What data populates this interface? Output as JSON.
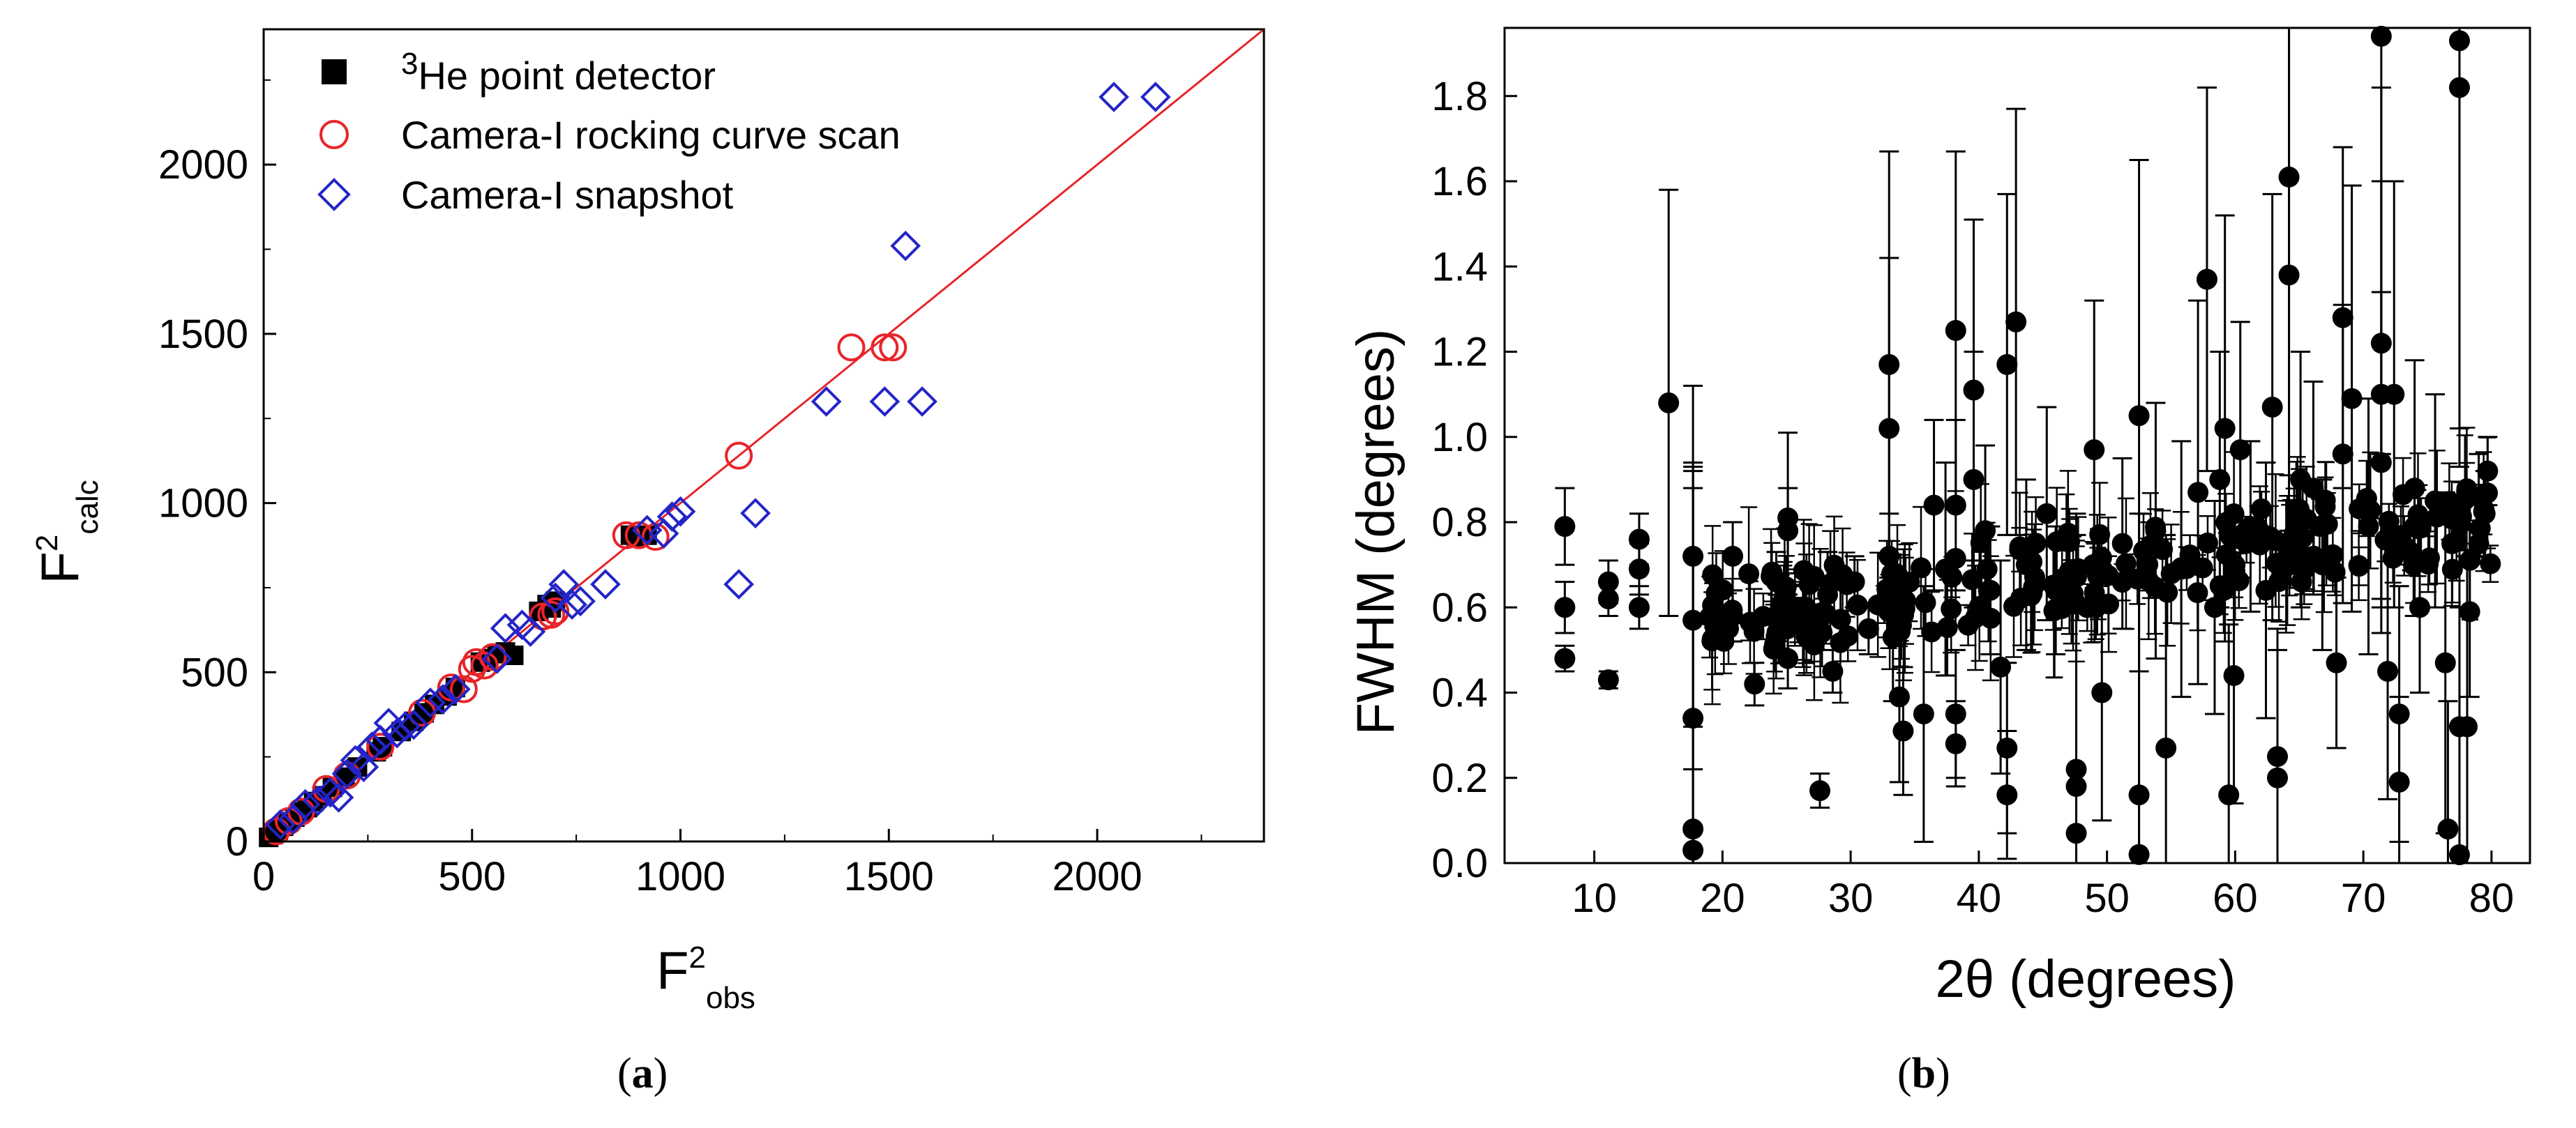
{
  "chart_data": [
    {
      "type": "scatter",
      "panel_label": "a",
      "xlabel": "F",
      "xlabel_sup": "2",
      "xlabel_sub": "obs",
      "ylabel": "F",
      "ylabel_sup": "2",
      "ylabel_sub": "calc",
      "xlim": [
        0,
        2400
      ],
      "ylim": [
        0,
        2400
      ],
      "xticks": [
        0,
        500,
        1000,
        1500,
        2000
      ],
      "yticks": [
        0,
        500,
        1000,
        1500,
        2000
      ],
      "legend_position": "top-left",
      "fit_line": {
        "x": [
          0,
          2400
        ],
        "y": [
          0,
          2400
        ],
        "color": "#e8242a"
      },
      "series": [
        {
          "name": "He point detector",
          "name_sup": "3",
          "marker": "square",
          "color": "#000000",
          "points": [
            [
              12,
              12
            ],
            [
              22,
              20
            ],
            [
              35,
              33
            ],
            [
              48,
              45
            ],
            [
              60,
              58
            ],
            [
              75,
              72
            ],
            [
              90,
              88
            ],
            [
              105,
              100
            ],
            [
              120,
              118
            ],
            [
              140,
              135
            ],
            [
              165,
              160
            ],
            [
              195,
              190
            ],
            [
              225,
              220
            ],
            [
              270,
              265
            ],
            [
              285,
              280
            ],
            [
              330,
              325
            ],
            [
              360,
              355
            ],
            [
              385,
              380
            ],
            [
              410,
              405
            ],
            [
              440,
              430
            ],
            [
              460,
              455
            ],
            [
              520,
              530
            ],
            [
              540,
              540
            ],
            [
              560,
              555
            ],
            [
              580,
              560
            ],
            [
              600,
              550
            ],
            [
              660,
              680
            ],
            [
              680,
              700
            ],
            [
              700,
              710
            ],
            [
              690,
              690
            ],
            [
              880,
              905
            ],
            [
              900,
              900
            ],
            [
              920,
              905
            ]
          ]
        },
        {
          "name": "Camera-I rocking curve scan",
          "marker": "circle",
          "color": "#e8242a",
          "points": [
            [
              30,
              30
            ],
            [
              60,
              60
            ],
            [
              90,
              88
            ],
            [
              150,
              155
            ],
            [
              200,
              195
            ],
            [
              280,
              280
            ],
            [
              380,
              380
            ],
            [
              450,
              455
            ],
            [
              480,
              450
            ],
            [
              500,
              510
            ],
            [
              510,
              530
            ],
            [
              530,
              520
            ],
            [
              550,
              545
            ],
            [
              670,
              665
            ],
            [
              690,
              670
            ],
            [
              700,
              680
            ],
            [
              870,
              905
            ],
            [
              900,
              905
            ],
            [
              940,
              900
            ],
            [
              1140,
              1140
            ],
            [
              1410,
              1460
            ],
            [
              1490,
              1460
            ],
            [
              1510,
              1460
            ]
          ]
        },
        {
          "name": "Camera-I snapshot",
          "marker": "diamond",
          "color": "#2424c8",
          "points": [
            [
              40,
              50
            ],
            [
              70,
              65
            ],
            [
              100,
              110
            ],
            [
              130,
              120
            ],
            [
              160,
              145
            ],
            [
              180,
              130
            ],
            [
              200,
              200
            ],
            [
              220,
              240
            ],
            [
              240,
              220
            ],
            [
              260,
              280
            ],
            [
              280,
              300
            ],
            [
              300,
              350
            ],
            [
              320,
              320
            ],
            [
              340,
              340
            ],
            [
              360,
              345
            ],
            [
              400,
              410
            ],
            [
              430,
              420
            ],
            [
              460,
              450
            ],
            [
              560,
              540
            ],
            [
              580,
              630
            ],
            [
              620,
              640
            ],
            [
              640,
              620
            ],
            [
              700,
              720
            ],
            [
              720,
              760
            ],
            [
              740,
              700
            ],
            [
              760,
              710
            ],
            [
              820,
              760
            ],
            [
              920,
              920
            ],
            [
              960,
              910
            ],
            [
              980,
              960
            ],
            [
              1000,
              975
            ],
            [
              1140,
              760
            ],
            [
              1180,
              970
            ],
            [
              1350,
              1300
            ],
            [
              1490,
              1300
            ],
            [
              1540,
              1760
            ],
            [
              1580,
              1300
            ],
            [
              2040,
              2200
            ],
            [
              2140,
              2200
            ]
          ]
        }
      ]
    },
    {
      "type": "scatter",
      "panel_label": "b",
      "xlabel": "2θ (degrees)",
      "ylabel": "FWHM (degrees)",
      "xlim": [
        3,
        83
      ],
      "ylim": [
        0,
        1.96
      ],
      "xticks": [
        10,
        20,
        30,
        40,
        50,
        60,
        70,
        80
      ],
      "yticks": [
        "0.0",
        "0.2",
        "0.4",
        "0.6",
        "0.8",
        "1.0",
        "1.2",
        "1.4",
        "1.6",
        "1.8"
      ],
      "legend_position": "none",
      "series": [
        {
          "name": "FWHM",
          "marker": "filled-circle",
          "color": "#000000",
          "points": [
            [
              7.7,
              0.79,
              0.09
            ],
            [
              7.7,
              0.6,
              0.06
            ],
            [
              7.7,
              0.48,
              0.03
            ],
            [
              11.1,
              0.66,
              0.05
            ],
            [
              11.1,
              0.62,
              0.04
            ],
            [
              11.1,
              0.43,
              0.02
            ],
            [
              13.5,
              0.76,
              0.06
            ],
            [
              13.5,
              0.69,
              0.06
            ],
            [
              13.5,
              0.6,
              0.05
            ],
            [
              15.8,
              1.08,
              0.5
            ],
            [
              17.7,
              0.72,
              0.4
            ],
            [
              17.7,
              0.57,
              0.35
            ],
            [
              17.7,
              0.34,
              0.6
            ],
            [
              17.7,
              0.08,
              0.8
            ],
            [
              17.7,
              0.03,
              0.9
            ],
            [
              19.5,
              0.58,
              0.05
            ],
            [
              20.8,
              0.72,
              0.08
            ],
            [
              20.8,
              0.58,
              0.06
            ],
            [
              22.5,
              0.42,
              0.05
            ],
            [
              24.2,
              0.66,
              0.07
            ],
            [
              25.1,
              0.81,
              0.2
            ],
            [
              25.1,
              0.78,
              0.1
            ],
            [
              25.1,
              0.55,
              0.08
            ],
            [
              25.1,
              0.48,
              0.07
            ],
            [
              26.5,
              0.6,
              0.05
            ],
            [
              27.6,
              0.17,
              0.04
            ],
            [
              28.2,
              0.63,
              0.1
            ],
            [
              28.6,
              0.45,
              0.05
            ],
            [
              30.3,
              0.66,
              0.06
            ],
            [
              31.4,
              0.55,
              0.06
            ],
            [
              33.0,
              1.17,
              0.5
            ],
            [
              33.0,
              1.02,
              0.4
            ],
            [
              33.0,
              0.72,
              0.1
            ],
            [
              33.3,
              0.53,
              0.15
            ],
            [
              33.8,
              0.39,
              0.2
            ],
            [
              34.1,
              0.31,
              0.15
            ],
            [
              35.7,
              0.35,
              0.3
            ],
            [
              36.5,
              0.84,
              0.2
            ],
            [
              37.4,
              0.69,
              0.25
            ],
            [
              38.2,
              1.25,
              0.42
            ],
            [
              38.2,
              0.84,
              0.2
            ],
            [
              38.2,
              0.35,
              0.15
            ],
            [
              38.2,
              0.28,
              0.1
            ],
            [
              39.6,
              1.11,
              0.4
            ],
            [
              39.6,
              0.9,
              0.3
            ],
            [
              40.5,
              0.78,
              0.2
            ],
            [
              40.9,
              0.64,
              0.15
            ],
            [
              41.7,
              0.46,
              0.25
            ],
            [
              42.2,
              1.17,
              0.4
            ],
            [
              42.2,
              0.27,
              0.2
            ],
            [
              42.2,
              0.16,
              0.15
            ],
            [
              42.9,
              1.27,
              0.5
            ],
            [
              43.7,
              0.7,
              0.2
            ],
            [
              45.3,
              0.82,
              0.25
            ],
            [
              46.0,
              0.64,
              0.15
            ],
            [
              47.6,
              0.22,
              0.6
            ],
            [
              47.6,
              0.18,
              0.5
            ],
            [
              47.6,
              0.07,
              0.7
            ],
            [
              49.0,
              0.97,
              0.35
            ],
            [
              49.6,
              0.4,
              0.3
            ],
            [
              51.2,
              0.75,
              0.2
            ],
            [
              52.5,
              1.05,
              0.6
            ],
            [
              52.5,
              0.16,
              0.5
            ],
            [
              52.5,
              0.02,
              0.8
            ],
            [
              53.8,
              0.78,
              0.3
            ],
            [
              54.6,
              0.27,
              0.5
            ],
            [
              55.8,
              0.69,
              0.3
            ],
            [
              57.1,
              0.87,
              0.45
            ],
            [
              57.8,
              1.37,
              0.45
            ],
            [
              58.4,
              0.6,
              0.25
            ],
            [
              58.8,
              0.9,
              0.3
            ],
            [
              59.2,
              1.02,
              0.5
            ],
            [
              59.5,
              0.16,
              0.4
            ],
            [
              59.9,
              0.44,
              0.3
            ],
            [
              60.4,
              0.97,
              0.3
            ],
            [
              61.2,
              0.79,
              0.2
            ],
            [
              62.4,
              0.64,
              0.3
            ],
            [
              62.9,
              1.07,
              0.5
            ],
            [
              63.3,
              0.25,
              0.3
            ],
            [
              63.3,
              0.2,
              0.3
            ],
            [
              64.2,
              1.61,
              0.7
            ],
            [
              64.2,
              1.38,
              0.6
            ],
            [
              65.1,
              0.9,
              0.3
            ],
            [
              66.1,
              0.88,
              0.25
            ],
            [
              66.8,
              0.7,
              0.2
            ],
            [
              67.9,
              0.47,
              0.2
            ],
            [
              68.4,
              1.28,
              0.4
            ],
            [
              68.4,
              0.96,
              0.35
            ],
            [
              69.1,
              1.09,
              0.5
            ],
            [
              70.4,
              0.79,
              0.3
            ],
            [
              71.4,
              1.96,
              1.0
            ],
            [
              71.4,
              1.22,
              0.6
            ],
            [
              71.4,
              1.1,
              0.5
            ],
            [
              71.4,
              0.94,
              0.4
            ],
            [
              71.9,
              0.45,
              0.3
            ],
            [
              72.4,
              1.1,
              0.5
            ],
            [
              72.8,
              0.35,
              0.3
            ],
            [
              72.8,
              0.19,
              0.2
            ],
            [
              74.0,
              0.88,
              0.3
            ],
            [
              74.4,
              0.6,
              0.2
            ],
            [
              75.6,
              0.85,
              0.25
            ],
            [
              76.4,
              0.47,
              0.4
            ],
            [
              76.6,
              0.08,
              0.3
            ],
            [
              77.5,
              1.93,
              1.0
            ],
            [
              77.5,
              1.82,
              0.8
            ],
            [
              77.5,
              0.32,
              0.5
            ],
            [
              77.5,
              0.0,
              0.6
            ],
            [
              78.1,
              0.32,
              0.4
            ],
            [
              78.3,
              0.59,
              0.2
            ],
            [
              79.0,
              0.86,
              0.1
            ],
            [
              79.5,
              0.82,
              0.1
            ],
            [
              79.7,
              0.92,
              0.08
            ]
          ]
        }
      ]
    }
  ]
}
